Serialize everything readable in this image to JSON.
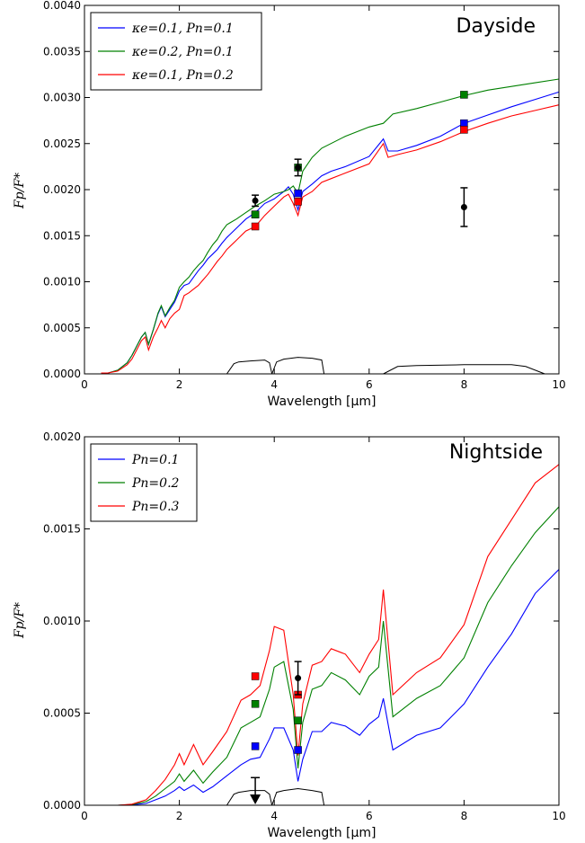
{
  "chart_data": [
    {
      "type": "line",
      "title": "Dayside",
      "xlabel": "Wavelength [μm]",
      "ylabel": "Fp/F*",
      "xlim": [
        0,
        10
      ],
      "ylim": [
        0,
        0.004
      ],
      "xticks": [
        "0",
        "2",
        "4",
        "6",
        "8",
        "10"
      ],
      "yticks": [
        "0.0000",
        "0.0005",
        "0.0010",
        "0.0015",
        "0.0020",
        "0.0025",
        "0.0030",
        "0.0035",
        "0.0040"
      ],
      "grid": false,
      "legend_position": "top-left",
      "series": [
        {
          "name": "κe=0.1, Pn=0.1",
          "color": "#0000ff",
          "x": [
            0.35,
            0.5,
            0.7,
            0.9,
            1.0,
            1.1,
            1.2,
            1.28,
            1.35,
            1.45,
            1.55,
            1.62,
            1.7,
            1.8,
            1.9,
            2.0,
            2.1,
            2.2,
            2.3,
            2.4,
            2.5,
            2.6,
            2.7,
            2.8,
            2.9,
            3.0,
            3.2,
            3.4,
            3.6,
            3.8,
            4.0,
            4.2,
            4.3,
            4.4,
            4.5,
            4.6,
            4.8,
            5.0,
            5.2,
            5.5,
            6.0,
            6.3,
            6.4,
            6.6,
            7.0,
            7.5,
            8.0,
            8.5,
            9.0,
            9.5,
            10.0
          ],
          "y": [
            1e-05,
            1e-05,
            4e-05,
            0.00012,
            0.0002,
            0.0003,
            0.0004,
            0.00045,
            0.00032,
            0.00048,
            0.00065,
            0.00073,
            0.00062,
            0.0007,
            0.00078,
            0.0009,
            0.00096,
            0.00098,
            0.00105,
            0.00112,
            0.00118,
            0.00125,
            0.0013,
            0.00135,
            0.00142,
            0.00148,
            0.00158,
            0.00168,
            0.00175,
            0.00185,
            0.0019,
            0.00198,
            0.00203,
            0.00195,
            0.00178,
            0.00198,
            0.00206,
            0.00215,
            0.0022,
            0.00225,
            0.00236,
            0.00255,
            0.00242,
            0.00242,
            0.00248,
            0.00258,
            0.00272,
            0.00281,
            0.0029,
            0.00298,
            0.00306
          ]
        },
        {
          "name": "κe=0.2, Pn=0.1",
          "color": "#008000",
          "x": [
            0.35,
            0.5,
            0.7,
            0.9,
            1.0,
            1.1,
            1.2,
            1.28,
            1.35,
            1.45,
            1.55,
            1.62,
            1.7,
            1.8,
            1.9,
            2.0,
            2.1,
            2.2,
            2.3,
            2.4,
            2.5,
            2.6,
            2.7,
            2.8,
            2.9,
            3.0,
            3.2,
            3.4,
            3.6,
            3.8,
            4.0,
            4.2,
            4.3,
            4.4,
            4.5,
            4.6,
            4.8,
            5.0,
            5.5,
            6.0,
            6.3,
            6.5,
            7.0,
            7.5,
            8.0,
            8.5,
            9.0,
            9.5,
            10.0
          ],
          "y": [
            1e-05,
            1e-05,
            4e-05,
            0.00012,
            0.0002,
            0.0003,
            0.0004,
            0.00045,
            0.00032,
            0.00048,
            0.00066,
            0.00074,
            0.00063,
            0.00072,
            0.0008,
            0.00094,
            0.001,
            0.00105,
            0.00112,
            0.00118,
            0.00123,
            0.00132,
            0.0014,
            0.00146,
            0.00155,
            0.00162,
            0.00168,
            0.00175,
            0.00182,
            0.00188,
            0.00195,
            0.00198,
            0.002,
            0.00204,
            0.00196,
            0.0022,
            0.00235,
            0.00245,
            0.00258,
            0.00268,
            0.00272,
            0.00282,
            0.00288,
            0.00295,
            0.00302,
            0.00308,
            0.00312,
            0.00316,
            0.0032
          ]
        },
        {
          "name": "κe=0.1, Pn=0.2",
          "color": "#ff0000",
          "x": [
            0.35,
            0.5,
            0.7,
            0.9,
            1.0,
            1.1,
            1.2,
            1.28,
            1.35,
            1.45,
            1.55,
            1.62,
            1.7,
            1.8,
            1.9,
            2.0,
            2.1,
            2.2,
            2.3,
            2.4,
            2.5,
            2.6,
            2.7,
            2.8,
            2.9,
            3.0,
            3.2,
            3.4,
            3.6,
            3.8,
            4.0,
            4.2,
            4.3,
            4.4,
            4.5,
            4.6,
            4.8,
            5.0,
            5.2,
            5.5,
            6.0,
            6.3,
            6.4,
            6.6,
            7.0,
            7.5,
            8.0,
            8.5,
            9.0,
            9.5,
            10.0
          ],
          "y": [
            1e-05,
            1e-05,
            3e-05,
            0.0001,
            0.00016,
            0.00026,
            0.00036,
            0.0004,
            0.00026,
            0.0004,
            0.0005,
            0.00058,
            0.0005,
            0.0006,
            0.00066,
            0.0007,
            0.00085,
            0.00088,
            0.00092,
            0.00096,
            0.00102,
            0.00108,
            0.00115,
            0.00122,
            0.00128,
            0.00135,
            0.00145,
            0.00155,
            0.0016,
            0.00172,
            0.00182,
            0.00192,
            0.00195,
            0.00185,
            0.00172,
            0.00192,
            0.00198,
            0.00208,
            0.00212,
            0.00218,
            0.00228,
            0.0025,
            0.00235,
            0.00238,
            0.00243,
            0.00252,
            0.00263,
            0.00272,
            0.0028,
            0.00286,
            0.00292
          ]
        }
      ],
      "observations": [
        {
          "x": 3.6,
          "y": 0.00188,
          "yerr": 6e-05
        },
        {
          "x": 4.5,
          "y": 0.00224,
          "yerr": 9e-05
        },
        {
          "x": 8.0,
          "y": 0.00181,
          "yerr": 0.00021
        }
      ],
      "band_averages": [
        {
          "x": 3.6,
          "y": 0.00173,
          "color": "#0000ff"
        },
        {
          "x": 3.6,
          "y": 0.00173,
          "color": "#008000"
        },
        {
          "x": 3.6,
          "y": 0.0016,
          "color": "#ff0000"
        },
        {
          "x": 4.5,
          "y": 0.00196,
          "color": "#0000ff"
        },
        {
          "x": 4.5,
          "y": 0.00224,
          "color": "#008000"
        },
        {
          "x": 4.5,
          "y": 0.00187,
          "color": "#ff0000"
        },
        {
          "x": 8.0,
          "y": 0.00272,
          "color": "#0000ff"
        },
        {
          "x": 8.0,
          "y": 0.00303,
          "color": "#008000"
        },
        {
          "x": 8.0,
          "y": 0.00265,
          "color": "#ff0000"
        }
      ],
      "filter_curves": [
        {
          "x": [
            3.0,
            3.15,
            3.25,
            3.5,
            3.8,
            3.9,
            3.95
          ],
          "y": [
            0,
            0.00011,
            0.00013,
            0.00014,
            0.00015,
            0.00012,
            0
          ]
        },
        {
          "x": [
            3.95,
            4.05,
            4.2,
            4.5,
            4.8,
            5.0,
            5.05
          ],
          "y": [
            0,
            0.00013,
            0.00016,
            0.00018,
            0.00017,
            0.00015,
            0
          ]
        },
        {
          "x": [
            6.3,
            6.6,
            7.0,
            8.0,
            9.0,
            9.3,
            9.7
          ],
          "y": [
            0,
            8e-05,
            9e-05,
            0.0001,
            0.0001,
            8e-05,
            0
          ]
        }
      ]
    },
    {
      "type": "line",
      "title": "Nightside",
      "xlabel": "Wavelength [μm]",
      "ylabel": "Fp/F*",
      "xlim": [
        0,
        10
      ],
      "ylim": [
        0,
        0.002
      ],
      "xticks": [
        "0",
        "2",
        "4",
        "6",
        "8",
        "10"
      ],
      "yticks": [
        "0.0000",
        "0.0005",
        "0.0010",
        "0.0015",
        "0.0020"
      ],
      "grid": false,
      "legend_position": "top-left",
      "series": [
        {
          "name": "Pn=0.1",
          "color": "#0000ff",
          "x": [
            0.3,
            0.7,
            1.0,
            1.3,
            1.5,
            1.7,
            1.9,
            2.0,
            2.1,
            2.3,
            2.5,
            2.7,
            3.0,
            3.3,
            3.5,
            3.7,
            3.9,
            4.0,
            4.2,
            4.4,
            4.5,
            4.6,
            4.8,
            5.0,
            5.2,
            5.5,
            5.8,
            6.0,
            6.2,
            6.3,
            6.5,
            7.0,
            7.5,
            8.0,
            8.5,
            9.0,
            9.5,
            10.0
          ],
          "y": [
            0,
            0,
            2e-06,
            1e-05,
            3e-05,
            5e-05,
            8e-05,
            0.0001,
            8e-05,
            0.00011,
            7e-05,
            0.0001,
            0.00016,
            0.00022,
            0.00025,
            0.00026,
            0.00036,
            0.00042,
            0.00042,
            0.0003,
            0.00013,
            0.00025,
            0.0004,
            0.0004,
            0.00045,
            0.00043,
            0.00038,
            0.00044,
            0.00048,
            0.00058,
            0.0003,
            0.00038,
            0.00042,
            0.00055,
            0.00075,
            0.00093,
            0.00115,
            0.00128
          ]
        },
        {
          "name": "Pn=0.2",
          "color": "#008000",
          "x": [
            0.3,
            0.7,
            1.0,
            1.3,
            1.5,
            1.7,
            1.9,
            2.0,
            2.1,
            2.3,
            2.5,
            2.7,
            3.0,
            3.3,
            3.5,
            3.7,
            3.9,
            4.0,
            4.2,
            4.4,
            4.5,
            4.6,
            4.8,
            5.0,
            5.2,
            5.5,
            5.8,
            6.0,
            6.2,
            6.3,
            6.5,
            7.0,
            7.5,
            8.0,
            8.5,
            9.0,
            9.5,
            10.0
          ],
          "y": [
            0,
            0,
            4e-06,
            2e-05,
            5e-05,
            9e-05,
            0.00013,
            0.00017,
            0.00013,
            0.00019,
            0.00012,
            0.00018,
            0.00026,
            0.00042,
            0.00045,
            0.00048,
            0.00063,
            0.00075,
            0.00078,
            0.00052,
            0.0002,
            0.00045,
            0.00063,
            0.00065,
            0.00072,
            0.00068,
            0.0006,
            0.0007,
            0.00075,
            0.001,
            0.00048,
            0.00058,
            0.00065,
            0.0008,
            0.0011,
            0.0013,
            0.00148,
            0.00162
          ]
        },
        {
          "name": "Pn=0.3",
          "color": "#ff0000",
          "x": [
            0.3,
            0.7,
            1.0,
            1.3,
            1.5,
            1.7,
            1.9,
            2.0,
            2.1,
            2.3,
            2.5,
            2.7,
            3.0,
            3.3,
            3.5,
            3.7,
            3.9,
            4.0,
            4.2,
            4.4,
            4.5,
            4.6,
            4.8,
            5.0,
            5.2,
            5.5,
            5.8,
            6.0,
            6.2,
            6.3,
            6.5,
            7.0,
            7.5,
            8.0,
            8.5,
            9.0,
            9.5,
            10.0
          ],
          "y": [
            0,
            0,
            6e-06,
            3e-05,
            8e-05,
            0.00014,
            0.00022,
            0.00028,
            0.00022,
            0.00033,
            0.00022,
            0.00029,
            0.0004,
            0.00057,
            0.0006,
            0.00065,
            0.00084,
            0.00097,
            0.00095,
            0.0006,
            0.00027,
            0.00055,
            0.00076,
            0.00078,
            0.00085,
            0.00082,
            0.00072,
            0.00082,
            0.0009,
            0.00117,
            0.0006,
            0.00072,
            0.0008,
            0.00098,
            0.00135,
            0.00155,
            0.00175,
            0.00185
          ]
        }
      ],
      "observations": [
        {
          "x": 4.5,
          "y": 0.00069,
          "yerr": 9e-05
        },
        {
          "x": 3.6,
          "y": 0.00015,
          "upper_limit": true
        }
      ],
      "band_averages": [
        {
          "x": 3.6,
          "y": 0.00032,
          "color": "#0000ff"
        },
        {
          "x": 3.6,
          "y": 0.00055,
          "color": "#008000"
        },
        {
          "x": 3.6,
          "y": 0.0007,
          "color": "#ff0000"
        },
        {
          "x": 4.5,
          "y": 0.0003,
          "color": "#0000ff"
        },
        {
          "x": 4.5,
          "y": 0.00046,
          "color": "#008000"
        },
        {
          "x": 4.5,
          "y": 0.0006,
          "color": "#ff0000"
        }
      ],
      "filter_curves": [
        {
          "x": [
            3.0,
            3.15,
            3.25,
            3.5,
            3.8,
            3.9,
            3.95
          ],
          "y": [
            0,
            6e-05,
            7e-05,
            8e-05,
            8e-05,
            6e-05,
            0
          ]
        },
        {
          "x": [
            3.95,
            4.05,
            4.2,
            4.5,
            4.8,
            5.0,
            5.05
          ],
          "y": [
            0,
            7e-05,
            8e-05,
            9e-05,
            8e-05,
            7e-05,
            0
          ]
        }
      ]
    }
  ]
}
